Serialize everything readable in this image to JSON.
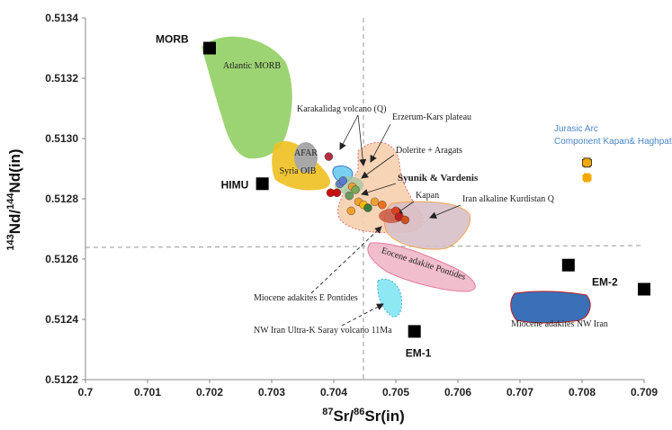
{
  "chart_data": {
    "type": "scatter",
    "xlabel": "87Sr/86Sr(in)",
    "ylabel": "143Nd/144Nd(in)",
    "xlim": [
      0.7,
      0.709
    ],
    "ylim": [
      0.5122,
      0.5134
    ],
    "x_ticks": [
      "0.7",
      "0.701",
      "0.702",
      "0.703",
      "0.704",
      "0.705",
      "0.706",
      "0.707",
      "0.708",
      "0.709"
    ],
    "y_ticks": [
      "0.5122",
      "0.5124",
      "0.5126",
      "0.5128",
      "0.5130",
      "0.5132",
      "0.5134"
    ],
    "grid": false,
    "reference_lines": {
      "x": 0.7045,
      "y": 0.51264
    },
    "end_members": [
      {
        "name": "MORB",
        "x": 0.702,
        "y": 0.5133
      },
      {
        "name": "HIMU",
        "x": 0.70285,
        "y": 0.51285
      },
      {
        "name": "EM-1",
        "x": 0.7053,
        "y": 0.51236
      },
      {
        "name": "EM-2",
        "x": 0.70778,
        "y": 0.51258
      },
      {
        "name": "EM-2",
        "x": 0.709,
        "y": 0.5125
      }
    ],
    "fields": [
      {
        "label": "Atlantic MORB",
        "color": "#8ccc5a"
      },
      {
        "label": "AFAR",
        "color": "#a8a8a8"
      },
      {
        "label": "Syria OIB",
        "color": "#f0c020"
      },
      {
        "label": "Eocene adakite Pontides",
        "color": "#f0b8c8"
      },
      {
        "label": "Miocene adakites NW Iran",
        "color": "#3a70b8"
      },
      {
        "label": "NW Iran Ultra-K Saray volcano 11Ma",
        "color": "#8ee8f4"
      },
      {
        "label": "Iran alkaline Kurdistan Q",
        "color": "#d8c0c8"
      },
      {
        "label": "Erzerum-Kars plateau",
        "color": "#f8d0b0"
      }
    ],
    "annotations": [
      "Karakalidag volcano (Q)",
      "Erzerum-Kars plateau",
      "Dolerite + Aragats",
      "Syunik & Vardenis",
      "Kapan",
      "Iran alkaline  Kurdistan Q",
      "Miocene adakites E Pontides",
      "NW Iran Ultra-K Saray volcano 11Ma"
    ],
    "jurassic_arc": {
      "label_line1": "Jurasic Arc",
      "label_line2": "Component Kapan& Haghpat",
      "color": "#f5a800",
      "points": [
        {
          "x": 0.70808,
          "y": 0.51292
        },
        {
          "x": 0.70808,
          "y": 0.51287
        }
      ]
    },
    "samples": [
      {
        "x": 0.70392,
        "y": 0.51294,
        "color": "#b03040"
      },
      {
        "x": 0.70395,
        "y": 0.51282,
        "color": "#cc1010"
      },
      {
        "x": 0.70405,
        "y": 0.51282,
        "color": "#cc1010"
      },
      {
        "x": 0.7041,
        "y": 0.51285,
        "color": "#6080c0"
      },
      {
        "x": 0.70415,
        "y": 0.51286,
        "color": "#5a7ad0"
      },
      {
        "x": 0.70425,
        "y": 0.51281,
        "color": "#6a9a60"
      },
      {
        "x": 0.7043,
        "y": 0.51284,
        "color": "#f0a030"
      },
      {
        "x": 0.70435,
        "y": 0.51283,
        "color": "#7aa858"
      },
      {
        "x": 0.7044,
        "y": 0.51279,
        "color": "#f0a030"
      },
      {
        "x": 0.70448,
        "y": 0.51278,
        "color": "#f8b800"
      },
      {
        "x": 0.70455,
        "y": 0.51277,
        "color": "#3a7a3a"
      },
      {
        "x": 0.70428,
        "y": 0.51276,
        "color": "#f0a030"
      },
      {
        "x": 0.70466,
        "y": 0.51279,
        "color": "#f0a030"
      },
      {
        "x": 0.70478,
        "y": 0.51278,
        "color": "#f07020"
      },
      {
        "x": 0.705,
        "y": 0.51276,
        "color": "#e04020"
      },
      {
        "x": 0.70505,
        "y": 0.51274,
        "color": "#c02020"
      },
      {
        "x": 0.70515,
        "y": 0.51273,
        "color": "#d05020"
      }
    ]
  },
  "tick_labels_x": [
    "0.7",
    "0.701",
    "0.702",
    "0.703",
    "0.704",
    "0.705",
    "0.706",
    "0.707",
    "0.708",
    "0.709"
  ],
  "tick_labels_y": [
    "0.5122",
    "0.5124",
    "0.5126",
    "0.5128",
    "0.5130",
    "0.5132",
    "0.5134"
  ]
}
